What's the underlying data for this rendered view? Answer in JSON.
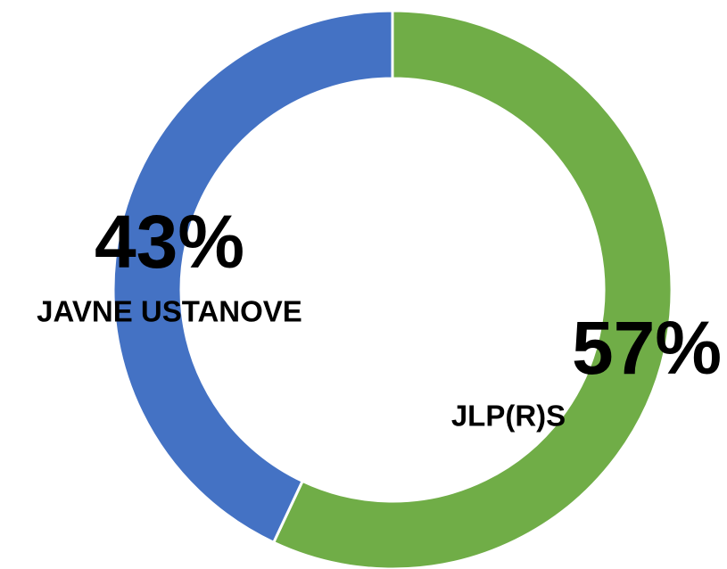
{
  "chart_data": {
    "type": "donut",
    "categories": [
      "JLP(R)S",
      "JAVNE USTANOVE"
    ],
    "values": [
      57,
      43
    ],
    "value_labels": [
      "57%",
      "43%"
    ],
    "colors": [
      "#70ad47",
      "#4472c4"
    ]
  }
}
